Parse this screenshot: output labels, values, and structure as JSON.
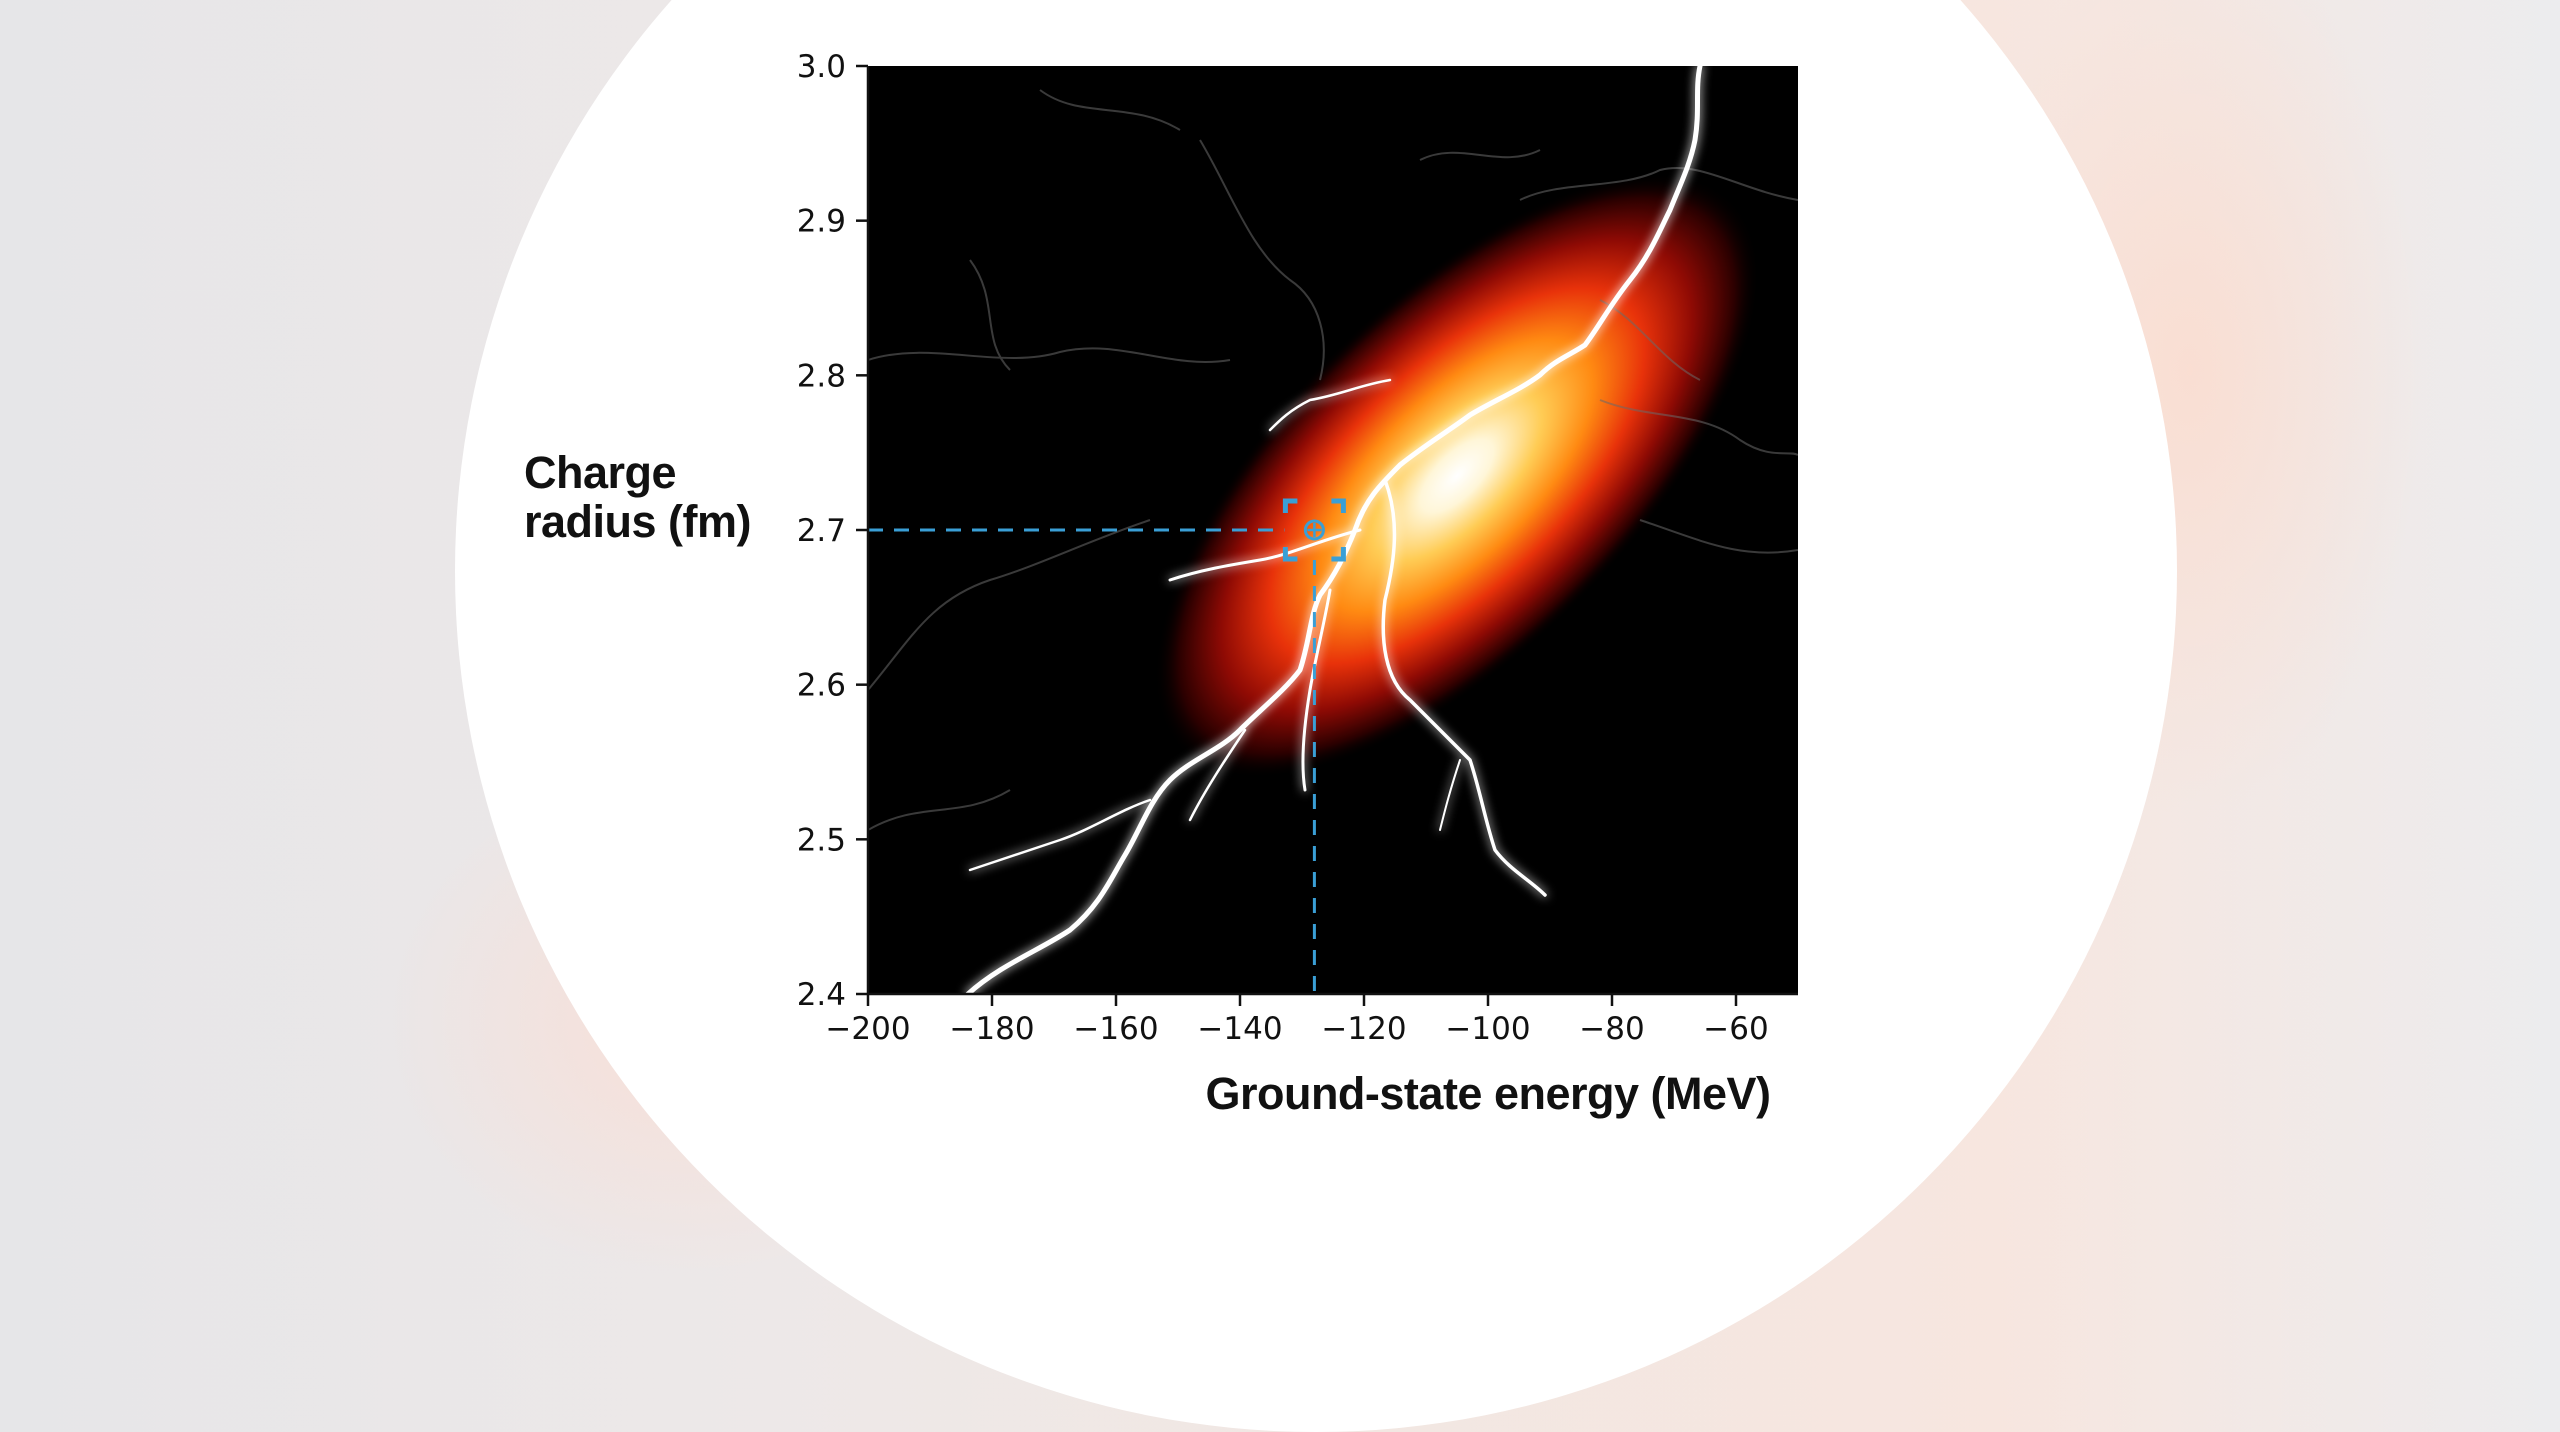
{
  "chart_data": {
    "type": "heatmap",
    "title": "",
    "xlabel": "Ground-state energy (MeV)",
    "ylabel_lines": [
      "Charge",
      "radius (fm)"
    ],
    "xlim": [
      -200,
      -50
    ],
    "ylim": [
      2.4,
      3.0
    ],
    "x_ticks": [
      -200,
      -180,
      -160,
      -140,
      -120,
      -100,
      -80,
      -60
    ],
    "x_tick_labels": [
      "−200",
      "−180",
      "−160",
      "−140",
      "−120",
      "−100",
      "−80",
      "−60"
    ],
    "y_ticks": [
      2.4,
      2.5,
      2.6,
      2.7,
      2.8,
      2.9,
      3.0
    ],
    "y_tick_labels": [
      "2.4",
      "2.5",
      "2.6",
      "2.7",
      "2.8",
      "2.9",
      "3.0"
    ],
    "density": {
      "peak": {
        "x": -105,
        "y": 2.735
      },
      "colormap": "hot",
      "correlation": "positive"
    },
    "marker": {
      "x": -128,
      "y": 2.7,
      "style": "dashed crosshair"
    },
    "grid": false,
    "legend": "none",
    "colors": {
      "marker": "#3a9fd6",
      "background": "#000000",
      "lightning": "#ffffff"
    }
  }
}
